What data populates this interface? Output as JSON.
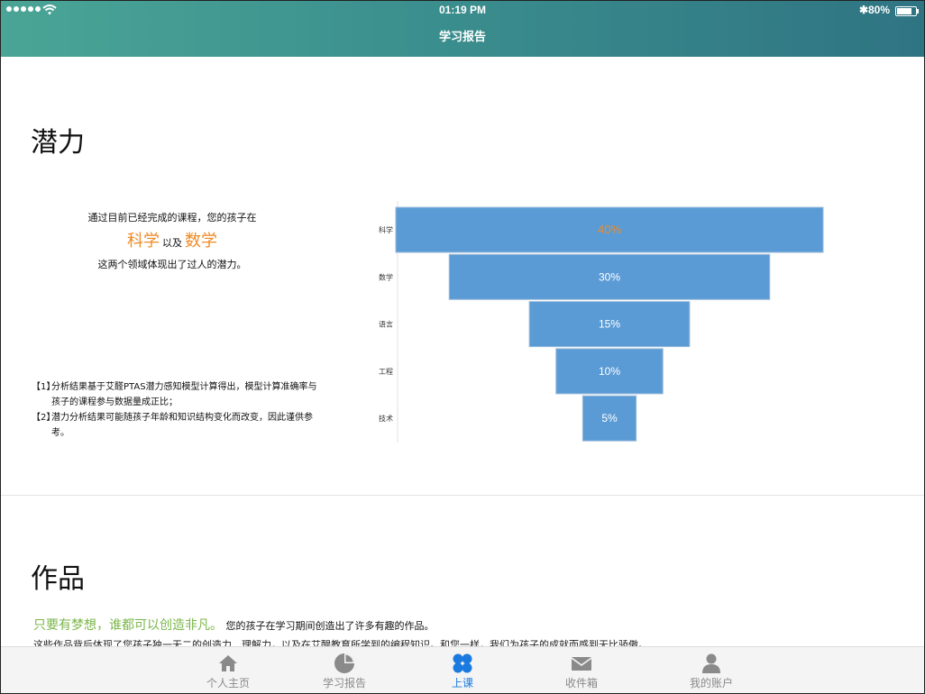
{
  "status_bar": {
    "time": "01:19 PM",
    "battery": "80%"
  },
  "nav": {
    "title": "学习报告"
  },
  "potential": {
    "title": "潜力",
    "intro_line1": "通过目前已经完成的课程，您的孩子在",
    "subject1": "科学",
    "connector": "以及",
    "subject2": "数学",
    "intro_line3": "这两个领域体现出了过人的潜力。",
    "notes": [
      {
        "num": "【1】",
        "text": "分析结果基于艾醛PTAS潜力感知模型计算得出，模型计算准确率与孩子的课程参与数据量成正比；"
      },
      {
        "num": "【2】",
        "text": "潜力分析结果可能随孩子年龄和知识结构变化而改变，因此谨供参考。"
      }
    ]
  },
  "chart_data": {
    "type": "bar",
    "orientation": "horizontal-funnel",
    "categories": [
      "科学",
      "数学",
      "语言",
      "工程",
      "技术"
    ],
    "values": [
      40,
      30,
      15,
      10,
      5
    ],
    "labels": [
      "40%",
      "30%",
      "15%",
      "10%",
      "5%"
    ],
    "bar_color": "#5b9bd5",
    "highlight_label_color": "#f08a24"
  },
  "works": {
    "title": "作品",
    "slogan": "只要有梦想，谁都可以创造非凡。",
    "slogan_tail": "您的孩子在学习期间创造出了许多有趣的作品。",
    "description": "这些作品背后体现了您孩子独一无二的创造力、理解力，以及在艾醍教育所学到的编程知识。和您一样，我们为孩子的成就而感到无比骄傲。"
  },
  "tabs": [
    {
      "label": "个人主页",
      "icon": "home-icon"
    },
    {
      "label": "学习报告",
      "icon": "pie-chart-icon"
    },
    {
      "label": "上课",
      "icon": "clover-icon",
      "active": true
    },
    {
      "label": "收件箱",
      "icon": "mail-icon"
    },
    {
      "label": "我的账户",
      "icon": "user-icon"
    }
  ]
}
